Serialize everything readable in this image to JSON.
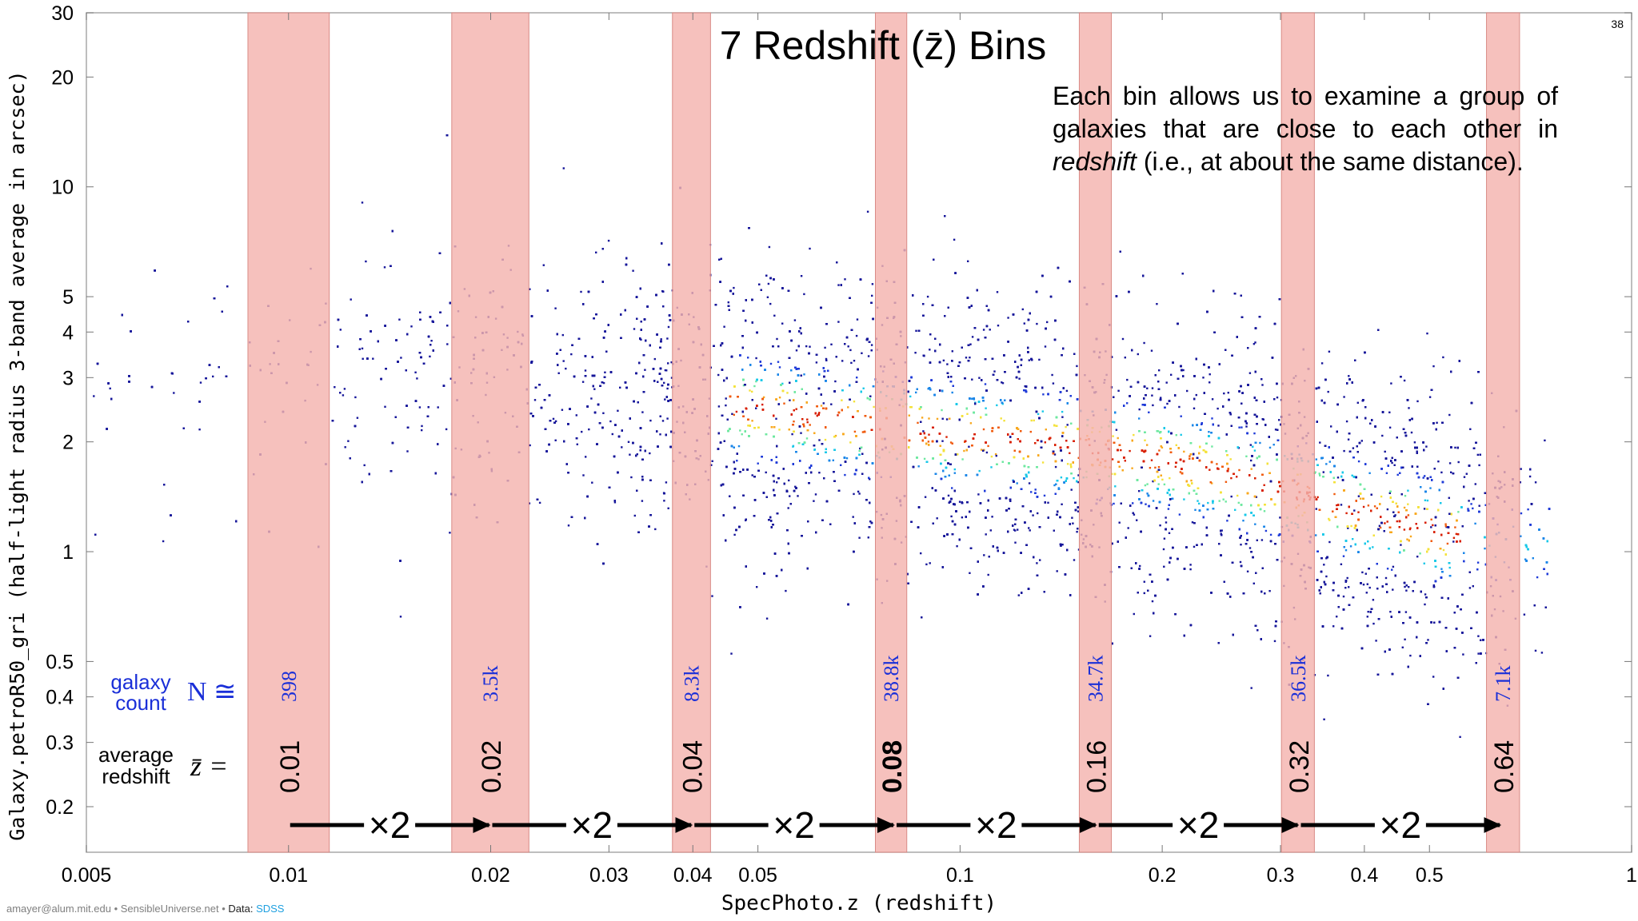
{
  "page_number": "38",
  "footer": {
    "author": "amayer@alum.mit.edu • SensibleUniverse.net •",
    "data_label": "Data:",
    "data_source": "SDSS"
  },
  "annotation": {
    "line1": "Each bin allows us to examine a group of galaxies that are close to each other in",
    "italic": "redshift",
    "line2": " (i.e., at about the same distance)."
  },
  "chart_data": {
    "type": "scatter",
    "title": "7 Redshift (z̄) Bins",
    "xlabel": "SpecPhoto.z (redshift)",
    "ylabel": "Galaxy.petroR50_gri (half-light radius 3-band average in arcsec)",
    "x_scale": "log",
    "y_scale": "log",
    "xlim": [
      0.005,
      1
    ],
    "ylim": [
      0.15,
      30
    ],
    "x_ticks": [
      {
        "value": 0.005,
        "label": "0.005"
      },
      {
        "value": 0.01,
        "label": "0.01"
      },
      {
        "value": 0.02,
        "label": "0.02"
      },
      {
        "value": 0.03,
        "label": "0.03"
      },
      {
        "value": 0.04,
        "label": "0.04"
      },
      {
        "value": 0.05,
        "label": "0.05"
      },
      {
        "value": 0.1,
        "label": "0.1"
      },
      {
        "value": 0.2,
        "label": "0.2"
      },
      {
        "value": 0.3,
        "label": "0.3"
      },
      {
        "value": 0.4,
        "label": "0.4"
      },
      {
        "value": 0.5,
        "label": "0.5"
      },
      {
        "value": 1,
        "label": "1"
      }
    ],
    "y_ticks": [
      {
        "value": 0.2,
        "label": "0.2"
      },
      {
        "value": 0.3,
        "label": "0.3"
      },
      {
        "value": 0.4,
        "label": "0.4"
      },
      {
        "value": 0.5,
        "label": "0.5"
      },
      {
        "value": 1,
        "label": "1"
      },
      {
        "value": 2,
        "label": "2"
      },
      {
        "value": 3,
        "label": "3"
      },
      {
        "value": 4,
        "label": "4"
      },
      {
        "value": 5,
        "label": "5"
      },
      {
        "value": 10,
        "label": "10"
      },
      {
        "value": 20,
        "label": "20"
      },
      {
        "value": 30,
        "label": "30"
      }
    ],
    "bins": [
      {
        "z": 0.01,
        "z_label": "0.01",
        "count": "398",
        "x_range": [
          0.0087,
          0.0115
        ],
        "bold": false
      },
      {
        "z": 0.02,
        "z_label": "0.02",
        "count": "3.5k",
        "x_range": [
          0.0175,
          0.0228
        ],
        "bold": false
      },
      {
        "z": 0.04,
        "z_label": "0.04",
        "count": "8.3k",
        "x_range": [
          0.0373,
          0.0425
        ],
        "bold": false
      },
      {
        "z": 0.08,
        "z_label": "0.08",
        "count": "38.8k",
        "x_range": [
          0.0748,
          0.0833
        ],
        "bold": true
      },
      {
        "z": 0.16,
        "z_label": "0.16",
        "count": "34.7k",
        "x_range": [
          0.1505,
          0.168
        ],
        "bold": false
      },
      {
        "z": 0.32,
        "z_label": "0.32",
        "count": "36.5k",
        "x_range": [
          0.301,
          0.337
        ],
        "bold": false
      },
      {
        "z": 0.64,
        "z_label": "0.64",
        "count": "7.1k",
        "x_range": [
          0.608,
          0.681
        ],
        "bold": false
      }
    ],
    "row_labels": {
      "count_line1": "galaxy",
      "count_line2": "count",
      "count_symbol": "N ≅",
      "avg_line1": "average",
      "avg_line2": "redshift",
      "avg_symbol": "z̄ ="
    },
    "multiplier_label": "×2",
    "density_ridge": [
      {
        "x": 0.01,
        "y": 3.2
      },
      {
        "x": 0.02,
        "y": 3.0
      },
      {
        "x": 0.04,
        "y": 2.6
      },
      {
        "x": 0.08,
        "y": 2.2
      },
      {
        "x": 0.13,
        "y": 2.0
      },
      {
        "x": 0.2,
        "y": 1.8
      },
      {
        "x": 0.32,
        "y": 1.45
      },
      {
        "x": 0.5,
        "y": 1.15
      },
      {
        "x": 0.64,
        "y": 1.05
      }
    ],
    "colors": {
      "bin_fill": "#f4b3ae",
      "count_text": "#1a2fd8",
      "low_density": "#1a1aa0",
      "high_density": "#e02000",
      "arrow": "#000000"
    }
  }
}
